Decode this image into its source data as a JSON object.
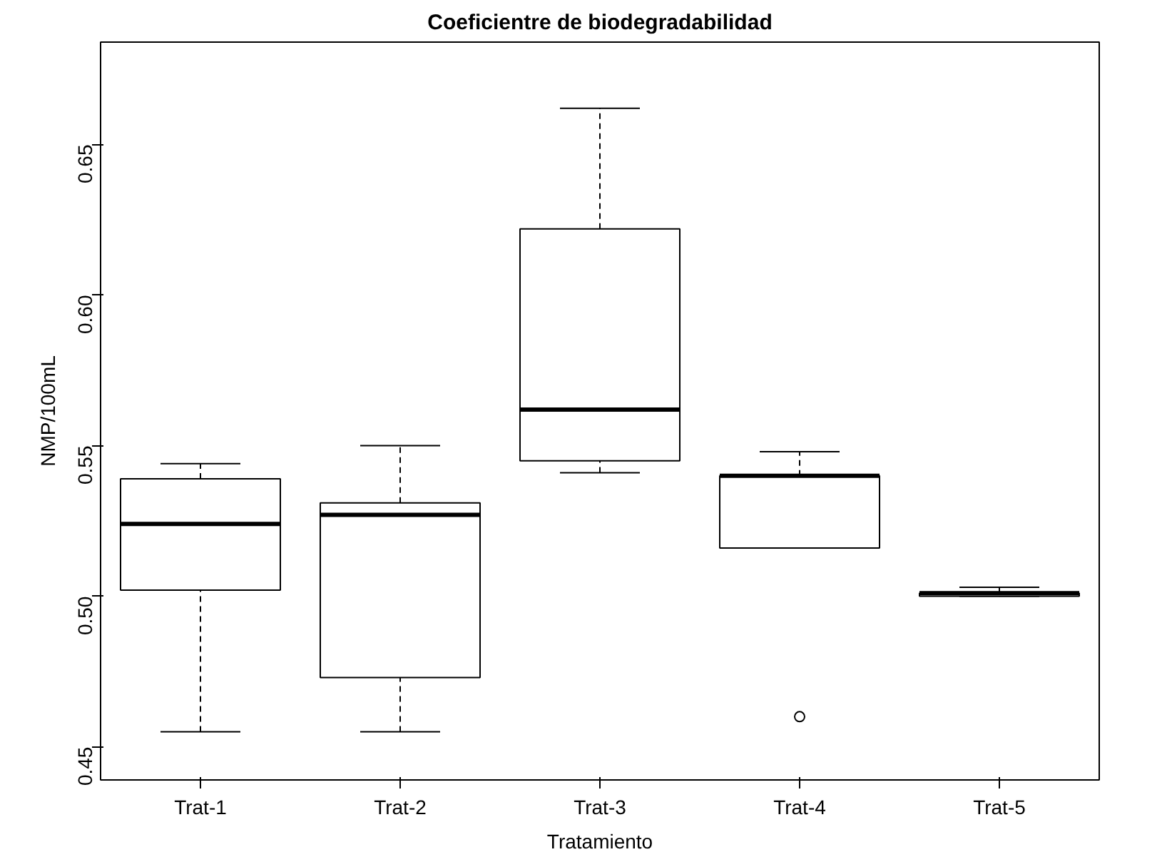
{
  "chart_data": {
    "type": "box",
    "title": "Coeficientre de biodegradabilidad",
    "xlabel": "Tratamiento",
    "ylabel": "NMP/100mL",
    "categories": [
      "Trat-1",
      "Trat-2",
      "Trat-3",
      "Trat-4",
      "Trat-5"
    ],
    "boxes": [
      {
        "low": 0.455,
        "q1": 0.502,
        "median": 0.524,
        "q3": 0.539,
        "high": 0.544
      },
      {
        "low": 0.455,
        "q1": 0.473,
        "median": 0.527,
        "q3": 0.531,
        "high": 0.55
      },
      {
        "low": 0.541,
        "q1": 0.545,
        "median": 0.562,
        "q3": 0.622,
        "high": 0.662
      },
      {
        "low": 0.516,
        "q1": 0.516,
        "median": 0.54,
        "q3": 0.54,
        "high": 0.548,
        "outliers": [
          0.46
        ]
      },
      {
        "low": 0.5,
        "q1": 0.5,
        "median": 0.501,
        "q3": 0.501,
        "high": 0.503
      }
    ],
    "color": "#000000",
    "ylim": [
      0.439,
      0.684
    ],
    "yticks": [
      0.45,
      {
        "value": 0.5,
        "label": "0.50"
      },
      0.55,
      {
        "value": 0.6,
        "label": "0.60"
      },
      0.65
    ],
    "grid": false
  }
}
